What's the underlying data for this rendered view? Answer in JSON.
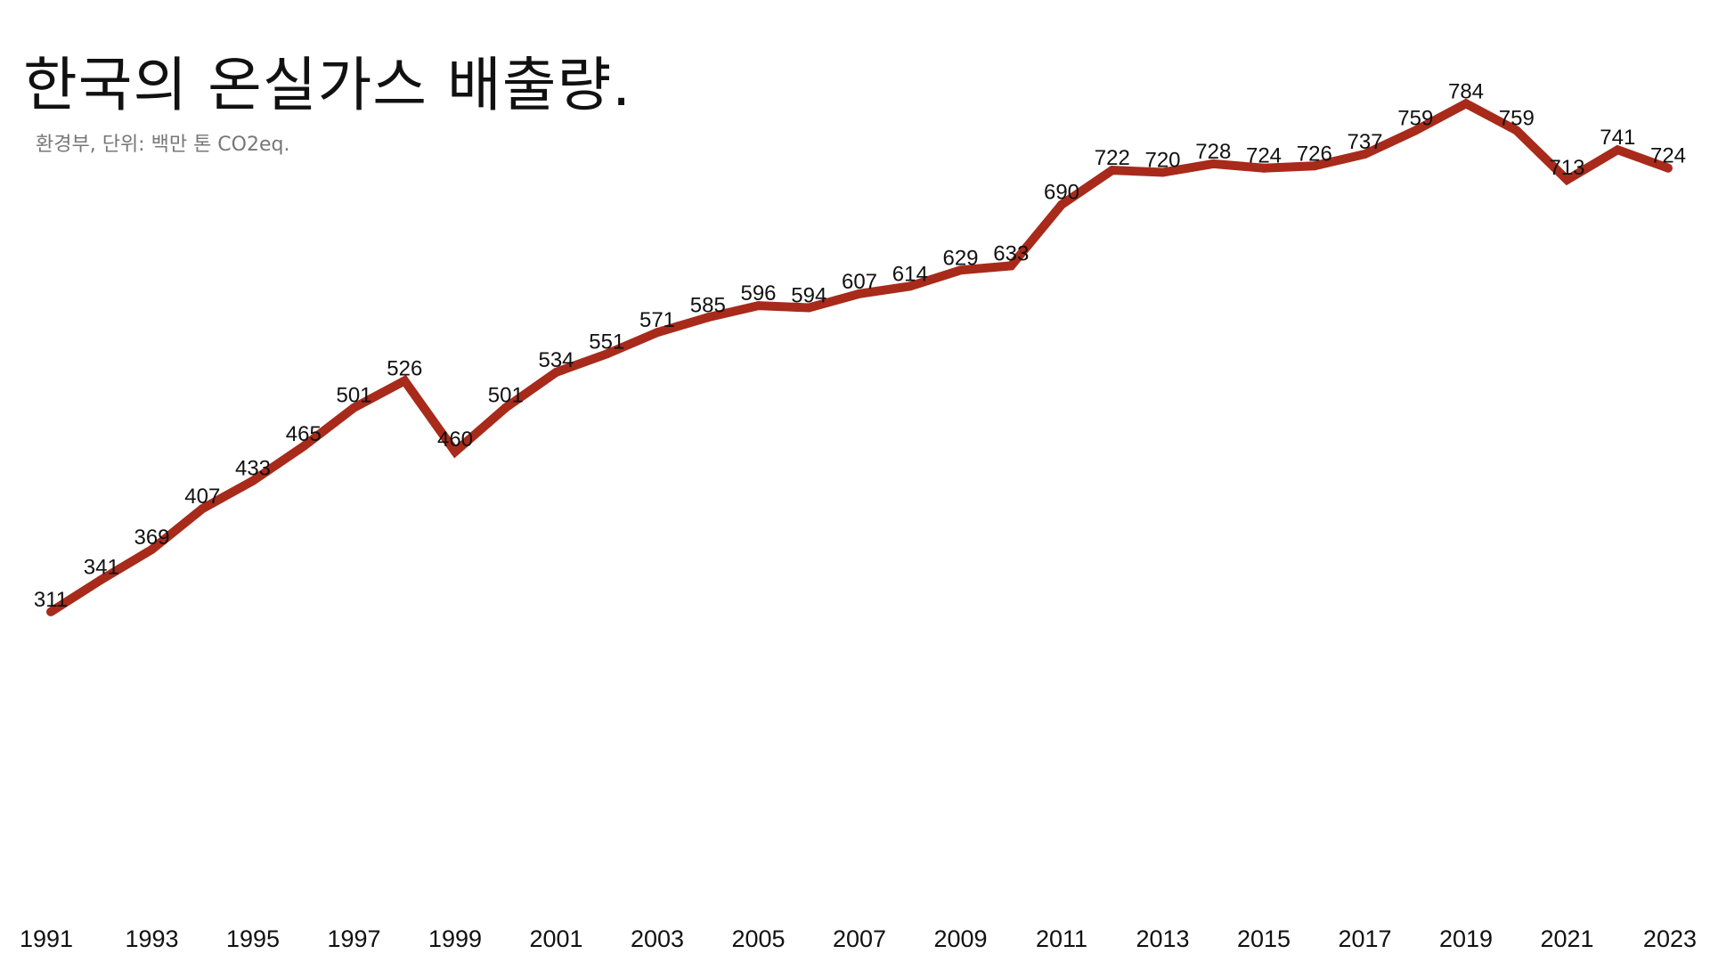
{
  "chart_data": {
    "type": "line",
    "title": "한국의 온실가스 배출량.",
    "subtitle": "환경부, 단위: 백만 톤 CO2eq.",
    "x": [
      1991,
      1992,
      1993,
      1994,
      1995,
      1996,
      1997,
      1998,
      1999,
      2000,
      2001,
      2002,
      2003,
      2004,
      2005,
      2006,
      2007,
      2008,
      2009,
      2010,
      2011,
      2012,
      2013,
      2014,
      2015,
      2016,
      2017,
      2018,
      2019,
      2020,
      2021,
      2022,
      2023
    ],
    "series": [
      {
        "values": [
          311,
          341,
          369,
          407,
          433,
          465,
          501,
          526,
          460,
          501,
          534,
          551,
          571,
          585,
          596,
          594,
          607,
          614,
          629,
          633,
          690,
          722,
          720,
          728,
          724,
          726,
          737,
          759,
          784,
          759,
          713,
          741,
          724
        ],
        "color": "#a82a1a"
      }
    ],
    "x_ticks": [
      "1991",
      "1993",
      "1995",
      "1997",
      "1999",
      "2001",
      "2003",
      "2005",
      "2007",
      "2009",
      "2011",
      "2013",
      "2015",
      "2017",
      "2019",
      "2021",
      "2023"
    ],
    "ylim": [
      0,
      800
    ],
    "grid": false,
    "legend": "none",
    "show_data_labels": true
  }
}
